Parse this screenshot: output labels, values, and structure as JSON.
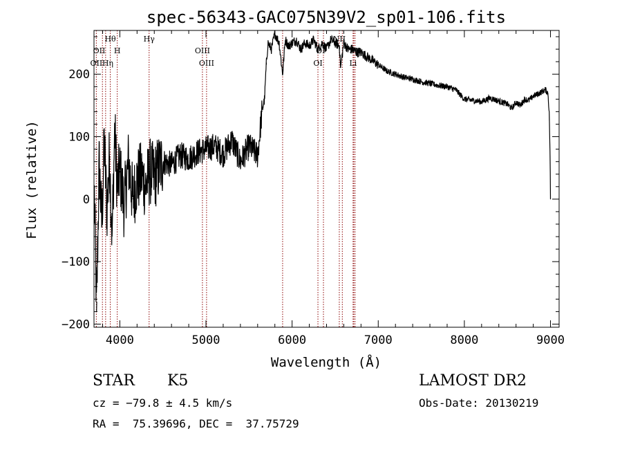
{
  "chart_data": {
    "type": "line",
    "title": "spec-56343-GAC075N39V2_sp01-106.fits",
    "xlabel": "Wavelength (Å)",
    "ylabel": "Flux (relative)",
    "xlim": [
      3700,
      9100
    ],
    "ylim": [
      -205,
      270
    ],
    "x_ticks": [
      4000,
      5000,
      6000,
      7000,
      8000,
      9000
    ],
    "y_ticks": [
      -200,
      -100,
      0,
      100,
      200
    ],
    "line_color": "#000000",
    "marker_color": "#8b0000",
    "grid": false,
    "legend": "none",
    "spectrum": {
      "x": [
        3705,
        3730,
        3760,
        3790,
        3820,
        3850,
        3880,
        3910,
        3940,
        3970,
        4000,
        4050,
        4100,
        4150,
        4200,
        4250,
        4300,
        4350,
        4400,
        4450,
        4500,
        4600,
        4700,
        4800,
        4900,
        5000,
        5100,
        5200,
        5300,
        5400,
        5500,
        5600,
        5650,
        5680,
        5700,
        5720,
        5760,
        5800,
        5850,
        5890,
        5920,
        5960,
        6000,
        6050,
        6100,
        6150,
        6200,
        6250,
        6300,
        6350,
        6400,
        6450,
        6500,
        6550,
        6563,
        6600,
        6650,
        6700,
        6750,
        6800,
        6850,
        6900,
        6950,
        7000,
        7100,
        7200,
        7300,
        7400,
        7500,
        7600,
        7700,
        7800,
        7900,
        8000,
        8100,
        8200,
        8300,
        8400,
        8500,
        8550,
        8600,
        8650,
        8700,
        8750,
        8800,
        8850,
        8900,
        8940,
        8970,
        8985,
        8995,
        9000
      ],
      "y": [
        5,
        -180,
        60,
        -40,
        90,
        -20,
        70,
        -60,
        110,
        20,
        45,
        -10,
        60,
        0,
        30,
        40,
        20,
        45,
        35,
        50,
        60,
        55,
        70,
        65,
        75,
        80,
        85,
        72,
        95,
        60,
        85,
        70,
        140,
        160,
        215,
        250,
        240,
        265,
        250,
        200,
        255,
        245,
        250,
        255,
        240,
        250,
        245,
        255,
        240,
        250,
        240,
        255,
        250,
        245,
        210,
        250,
        240,
        240,
        235,
        235,
        230,
        225,
        220,
        215,
        205,
        200,
        195,
        192,
        188,
        185,
        182,
        180,
        175,
        160,
        158,
        156,
        162,
        157,
        152,
        145,
        155,
        150,
        160,
        158,
        165,
        168,
        172,
        175,
        170,
        140,
        70,
        0
      ]
    },
    "line_markers": [
      {
        "x": 3727,
        "label": "OII",
        "row": 2
      },
      {
        "x": 3798,
        "label": "",
        "row": 0
      },
      {
        "x": 3835,
        "label": "",
        "row": 0
      },
      {
        "x": 3889,
        "label": "Hθ",
        "row": 0
      },
      {
        "x": 3970,
        "label": "H",
        "row": 1
      },
      {
        "x": 4340,
        "label": "Hγ",
        "row": 0
      },
      {
        "x": 4959,
        "label": "OIII",
        "row": 1
      },
      {
        "x": 5007,
        "label": "OIII",
        "row": 2
      },
      {
        "x": 5890,
        "label": "",
        "row": 0
      },
      {
        "x": 6300,
        "label": "OI",
        "row": 2
      },
      {
        "x": 6364,
        "label": "",
        "row": 0
      },
      {
        "x": 6548,
        "label": "NII",
        "row": 0
      },
      {
        "x": 6583,
        "label": "",
        "row": 0
      },
      {
        "x": 6708,
        "label": "Li",
        "row": 2
      },
      {
        "x": 6716,
        "label": "",
        "row": 0
      },
      {
        "x": 6731,
        "label": "",
        "row": 0
      }
    ],
    "marker_labels_extra": [
      {
        "x": 3760,
        "label": "OII",
        "row": 1
      },
      {
        "x": 3860,
        "label": "Hη",
        "row": 2
      },
      {
        "x": 6330,
        "label": "OI",
        "row": 1
      },
      {
        "x": 6730,
        "label": "SII",
        "row": 1
      }
    ]
  },
  "info": {
    "object_class": "STAR",
    "subclass": "K5",
    "survey": "LAMOST DR2",
    "cz": "cz = −79.8 ± 4.5 km/s",
    "obs_date": "Obs-Date: 20130219",
    "coords": "RA =  75.39696, DEC =  37.75729"
  }
}
